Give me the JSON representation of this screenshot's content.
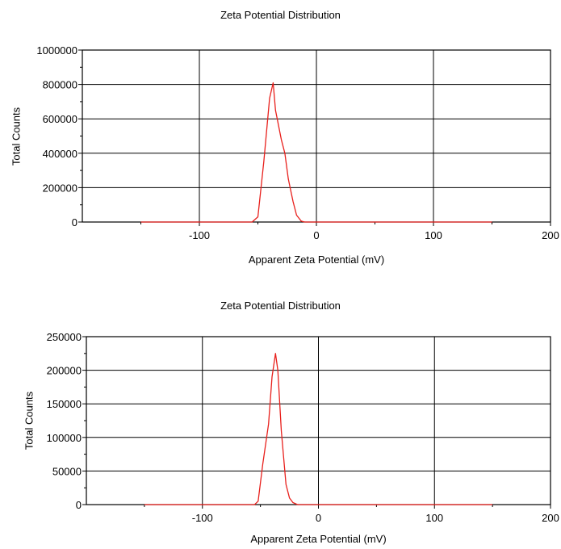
{
  "chart_data": [
    {
      "type": "line",
      "title": "Zeta Potential Distribution",
      "xlabel": "Apparent Zeta Potential (mV)",
      "ylabel": "Total Counts",
      "xlim": [
        -200,
        200
      ],
      "ylim": [
        0,
        1000000
      ],
      "xticks": [
        -100,
        0,
        100,
        200
      ],
      "yticks": [
        0,
        200000,
        400000,
        600000,
        800000,
        1000000
      ],
      "grid": true,
      "series": [
        {
          "color": "#e8201c",
          "x": [
            -150,
            -55,
            -50,
            -45,
            -40,
            -37,
            -35,
            -30,
            -27,
            -24,
            -20,
            -17,
            -13,
            -10,
            0,
            50,
            100,
            150
          ],
          "y": [
            0,
            0,
            30000,
            350000,
            720000,
            810000,
            650000,
            480000,
            400000,
            250000,
            120000,
            40000,
            5000,
            0,
            0,
            0,
            0,
            0
          ]
        }
      ]
    },
    {
      "type": "line",
      "title": "Zeta Potential Distribution",
      "xlabel": "Apparent Zeta Potential (mV)",
      "ylabel": "Total Counts",
      "xlim": [
        -200,
        200
      ],
      "ylim": [
        0,
        250000
      ],
      "xticks": [
        -100,
        0,
        100,
        200
      ],
      "yticks": [
        0,
        50000,
        100000,
        150000,
        200000,
        250000
      ],
      "grid": true,
      "series": [
        {
          "color": "#e8201c",
          "x": [
            -150,
            -55,
            -52,
            -48,
            -43,
            -40,
            -37,
            -35,
            -32,
            -28,
            -25,
            -22,
            -18,
            -15,
            0,
            50,
            100,
            150
          ],
          "y": [
            0,
            0,
            5000,
            60000,
            120000,
            190000,
            225000,
            200000,
            110000,
            30000,
            10000,
            3000,
            0,
            0,
            0,
            0,
            0,
            0
          ]
        }
      ]
    }
  ]
}
